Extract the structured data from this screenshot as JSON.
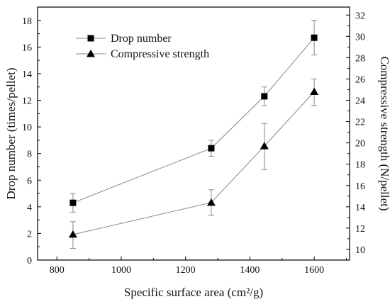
{
  "chart_data": {
    "type": "line",
    "xlabel": "Specific surface area (cm²/g)",
    "ylabel_left": "Drop number (times/pellet)",
    "ylabel_right": "Compressive strength (N/pellet)",
    "xlim": [
      740,
      1710
    ],
    "ylim_left": [
      0,
      19
    ],
    "ylim_right": [
      9,
      32.75
    ],
    "x_ticks": [
      800,
      1000,
      1200,
      1400,
      1600
    ],
    "y_left_ticks": [
      0,
      2,
      4,
      6,
      8,
      10,
      12,
      14,
      16,
      18
    ],
    "y_right_ticks": [
      10,
      12,
      14,
      16,
      18,
      20,
      22,
      24,
      26,
      28,
      30,
      32
    ],
    "legend_position": "top-left",
    "series": [
      {
        "name": "Drop number",
        "axis": "left",
        "marker": "square",
        "x": [
          850,
          1280,
          1445,
          1600
        ],
        "values": [
          4.3,
          8.4,
          12.3,
          16.7
        ],
        "err_low": [
          3.6,
          7.8,
          11.6,
          15.4
        ],
        "err_high": [
          5.0,
          9.0,
          13.0,
          18.0
        ]
      },
      {
        "name": "Compressive strength",
        "axis": "right",
        "marker": "triangle",
        "x": [
          850,
          1280,
          1445,
          1600
        ],
        "values": [
          11.4,
          14.4,
          19.7,
          24.8
        ],
        "err_low": [
          10.1,
          13.2,
          17.5,
          23.5
        ],
        "err_high": [
          12.6,
          15.6,
          21.8,
          26.0
        ]
      }
    ]
  }
}
